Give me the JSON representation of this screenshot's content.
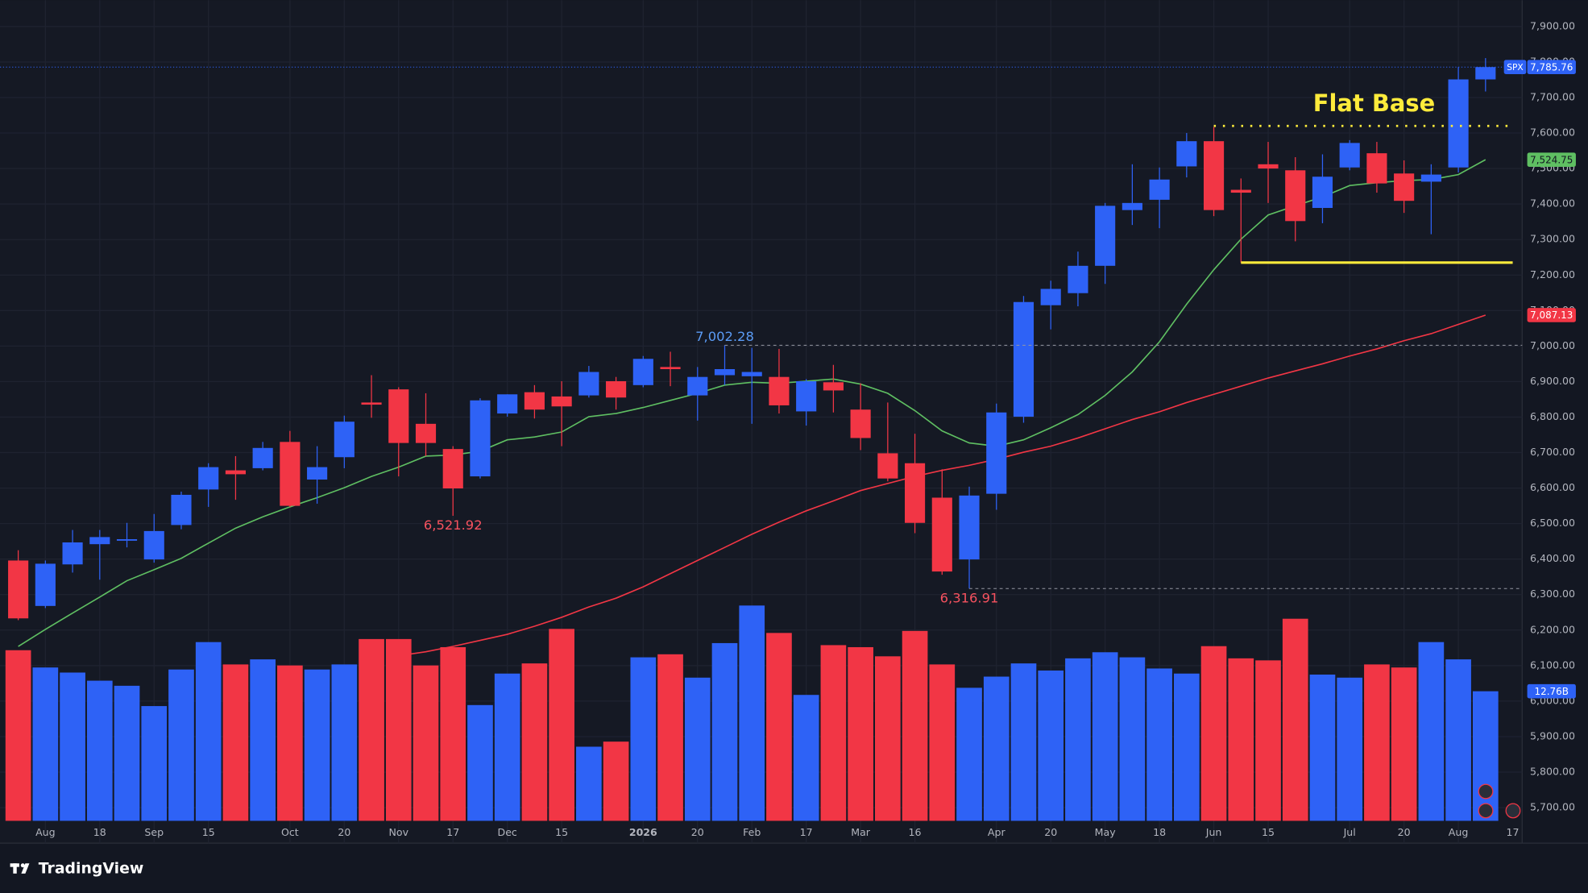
{
  "chart_data": {
    "type": "candlestick",
    "symbol": "SPX",
    "last_label": "7,785.76",
    "up_color": "#2e62f6",
    "down_color": "#f23645",
    "categories": [
      null,
      "Aug",
      null,
      "18",
      null,
      "Sep",
      null,
      "15",
      null,
      null,
      "Oct",
      null,
      "20",
      null,
      "Nov",
      null,
      "17",
      null,
      "Dec",
      null,
      "15",
      null,
      null,
      "2026",
      null,
      "20",
      null,
      "Feb",
      null,
      "17",
      null,
      "Mar",
      null,
      "16",
      null,
      null,
      "Apr",
      null,
      "20",
      null,
      "May",
      null,
      "18",
      null,
      "Jun",
      null,
      "15",
      null,
      null,
      "Jul",
      null,
      "20",
      null,
      "Aug",
      null
    ],
    "x_extra_label": "17",
    "open": [
      6396,
      6268,
      6385,
      6442,
      6453,
      6399,
      6496,
      6596,
      6650,
      6656,
      6730,
      6624,
      6687,
      6841,
      6878,
      6781,
      6710,
      6633,
      6810,
      6870,
      6858,
      6861,
      6901,
      6890,
      6941,
      6861,
      6918,
      6915,
      6913,
      6816,
      6898,
      6821,
      6698,
      6670,
      6573,
      6399,
      6584,
      6801,
      7115,
      7149,
      7226,
      7383,
      7412,
      7506,
      7577,
      7440,
      7512,
      7495,
      7389,
      7503,
      7543,
      7486,
      7463,
      7503,
      7751
    ],
    "high": [
      6425,
      6396,
      6482,
      6482,
      6502,
      6527,
      6590,
      6670,
      6690,
      6730,
      6761,
      6718,
      6804,
      6918,
      6884,
      6867,
      6718,
      6853,
      6864,
      6890,
      6901,
      6944,
      6913,
      6972,
      6984,
      6941,
      7002.28,
      6995,
      6992,
      6907,
      6947,
      6895,
      6841,
      6753,
      6653,
      6604,
      6838,
      7141,
      7184,
      7266,
      7403,
      7512,
      7503,
      7600,
      7617,
      7472,
      7575,
      7532,
      7540,
      7580,
      7575,
      7523,
      7512,
      7786,
      7811
    ],
    "low": [
      6228,
      6262,
      6362,
      6342,
      6433,
      6390,
      6484,
      6547,
      6567,
      6650,
      6547,
      6556,
      6656,
      6798,
      6633,
      6690,
      6521.92,
      6627,
      6801,
      6796,
      6718,
      6855,
      6821,
      6884,
      6887,
      6790,
      6890,
      6781,
      6810,
      6776,
      6813,
      6707,
      6619,
      6473,
      6356,
      6316.91,
      6539,
      6784,
      7047,
      7112,
      7175,
      7341,
      7332,
      7475,
      7366,
      7235,
      7403,
      7295,
      7346,
      7495,
      7432,
      7375,
      7315,
      7489,
      7717
    ],
    "close": [
      6233,
      6387,
      6447,
      6462,
      6456,
      6479,
      6581,
      6659,
      6639,
      6713,
      6550,
      6659,
      6787,
      6835,
      6727,
      6727,
      6599,
      6847,
      6864,
      6821,
      6830,
      6927,
      6855,
      6964,
      6935,
      6913,
      6935,
      6927,
      6833,
      6901,
      6875,
      6741,
      6627,
      6502,
      6365,
      6579,
      6813,
      7124,
      7161,
      7226,
      7395,
      7403,
      7469,
      7577,
      7383,
      7432,
      7500,
      7352,
      7477,
      7572,
      7458,
      7409,
      7483,
      7751,
      7785.76
    ],
    "ylim": [
      5600,
      7974
    ],
    "yticks": [
      {
        "value": 5700,
        "label": "5,700.00"
      },
      {
        "value": 5800,
        "label": "5,800.00"
      },
      {
        "value": 5900,
        "label": "5,900.00"
      },
      {
        "value": 6000,
        "label": "6,000.00"
      },
      {
        "value": 6100,
        "label": "6,100.00"
      },
      {
        "value": 6200,
        "label": "6,200.00"
      },
      {
        "value": 6300,
        "label": "6,300.00"
      },
      {
        "value": 6400,
        "label": "6,400.00"
      },
      {
        "value": 6500,
        "label": "6,500.00"
      },
      {
        "value": 6600,
        "label": "6,600.00"
      },
      {
        "value": 6700,
        "label": "6,700.00"
      },
      {
        "value": 6800,
        "label": "6,800.00"
      },
      {
        "value": 6900,
        "label": "6,900.00"
      },
      {
        "value": 7000,
        "label": "7,000.00"
      },
      {
        "value": 7100,
        "label": "7,100.00"
      },
      {
        "value": 7200,
        "label": "7,200.00"
      },
      {
        "value": 7300,
        "label": "7,300.00"
      },
      {
        "value": 7400,
        "label": "7,400.00"
      },
      {
        "value": 7500,
        "label": "7,500.00"
      },
      {
        "value": 7600,
        "label": "7,600.00"
      },
      {
        "value": 7700,
        "label": "7,700.00"
      },
      {
        "value": 7800,
        "label": "7,800.00"
      },
      {
        "value": 7900,
        "label": "7,900.00"
      }
    ],
    "grid": true,
    "volume": {
      "values": [
        16.8,
        15.1,
        14.6,
        13.8,
        13.3,
        11.3,
        14.9,
        17.6,
        15.4,
        15.9,
        15.3,
        14.9,
        15.4,
        17.9,
        17.9,
        15.3,
        17.1,
        11.4,
        14.5,
        15.5,
        18.9,
        7.3,
        7.8,
        16.1,
        16.4,
        14.1,
        17.5,
        21.2,
        18.5,
        12.4,
        17.3,
        17.1,
        16.2,
        18.7,
        15.4,
        13.1,
        14.2,
        15.5,
        14.8,
        16.0,
        16.6,
        16.1,
        15.0,
        14.5,
        17.2,
        16.0,
        15.8,
        19.9,
        14.4,
        14.1,
        15.4,
        15.1,
        17.6,
        15.9,
        12.76
      ],
      "vlim": [
        0,
        80
      ],
      "last_label": "12.76B"
    },
    "overlays": [
      {
        "color": "#5fbf62",
        "last_label": "7,524.75",
        "values": [
          6154,
          6202,
          6248,
          6293,
          6339,
          6370,
          6402,
          6445,
          6487,
          6519,
          6547,
          6573,
          6601,
          6633,
          6659,
          6690,
          6693,
          6704,
          6736,
          6744,
          6758,
          6801,
          6810,
          6827,
          6847,
          6867,
          6890,
          6898,
          6895,
          6901,
          6907,
          6893,
          6867,
          6818,
          6761,
          6727,
          6718,
          6736,
          6770,
          6807,
          6861,
          6927,
          7012,
          7118,
          7215,
          7301,
          7369,
          7395,
          7420,
          7452,
          7460,
          7466,
          7469,
          7483,
          7524.75
        ]
      },
      {
        "color": "#f23645",
        "last_label": "7,087.13",
        "values": [
          null,
          null,
          null,
          null,
          null,
          null,
          null,
          null,
          null,
          null,
          null,
          null,
          null,
          null,
          6128,
          6139,
          6154,
          6171,
          6188,
          6211,
          6236,
          6265,
          6290,
          6322,
          6359,
          6396,
          6433,
          6470,
          6504,
          6536,
          6564,
          6593,
          6613,
          6633,
          6650,
          6664,
          6681,
          6701,
          6718,
          6741,
          6767,
          6793,
          6815,
          6841,
          6864,
          6887,
          6910,
          6930,
          6950,
          6972,
          6992,
          7015,
          7035,
          7061,
          7087.13
        ]
      }
    ],
    "annotations": [
      {
        "label": "7,002.28",
        "index": 26,
        "field": "high",
        "line": true
      },
      {
        "label": "6,521.92",
        "index": 16,
        "field": "low",
        "line": false
      },
      {
        "label": "6,316.91",
        "index": 35,
        "field": "low",
        "line": true
      }
    ],
    "flat_base": {
      "label": "Flat Base",
      "top": 7620,
      "bottom": 7235,
      "color": "#ffeb3b"
    },
    "footer": "TradingView"
  }
}
